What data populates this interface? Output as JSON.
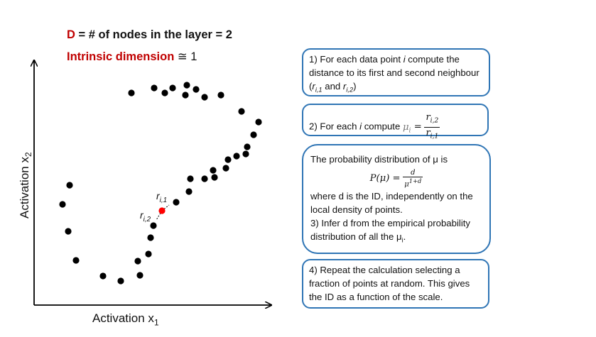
{
  "header": {
    "line1_red": "D",
    "line1_rest": " = # of nodes  in the layer = 2",
    "line2_red": "Intrinsic dimension",
    "line2_rest": " ≅ 1"
  },
  "axes": {
    "ylabel_main": "Activation x",
    "ylabel_sub": "2",
    "xlabel_main": "Activation x",
    "xlabel_sub": "1"
  },
  "neighbours": {
    "r1_main": "r",
    "r1_sub": "i,1",
    "r2_main": "r",
    "r2_sub": "i,2"
  },
  "colors": {
    "accent_red": "#c00000",
    "box_border": "#2f75b5",
    "point": "#000000",
    "highlight_point": "#ff0000"
  },
  "steps": {
    "step1": {
      "t1": "1) For each data point ",
      "i": "i",
      "t2": " compute the distance to its first and second neighbour (",
      "r1": "r",
      "r1sub": "i,1",
      "and": " and ",
      "r2": "r",
      "r2sub": "i,2",
      "close": ")"
    },
    "step2": {
      "t1": "2) For each ",
      "i": "i",
      "t2": " compute ",
      "mu": "μ",
      "mu_sub": "i",
      "eq": " =",
      "num_main": "r",
      "num_sub": "i,2",
      "den_main": "r",
      "den_sub": "i,1"
    },
    "step3": {
      "t1": "The probability distribution of μ is",
      "formula_lhs": "P(μ) =",
      "formula_num": "d",
      "formula_den": "μ",
      "formula_den_sup": "1+d",
      "t2": "where d is the ID, independently on the local density of points.",
      "t3": "3) Infer d from the empirical probability distribution of all the μ",
      "t3_sub": "i",
      "t3_end": "."
    },
    "step4": {
      "text": "4) Repeat the calculation selecting a fraction of points at random. This gives the ID as a function of the scale."
    }
  }
}
